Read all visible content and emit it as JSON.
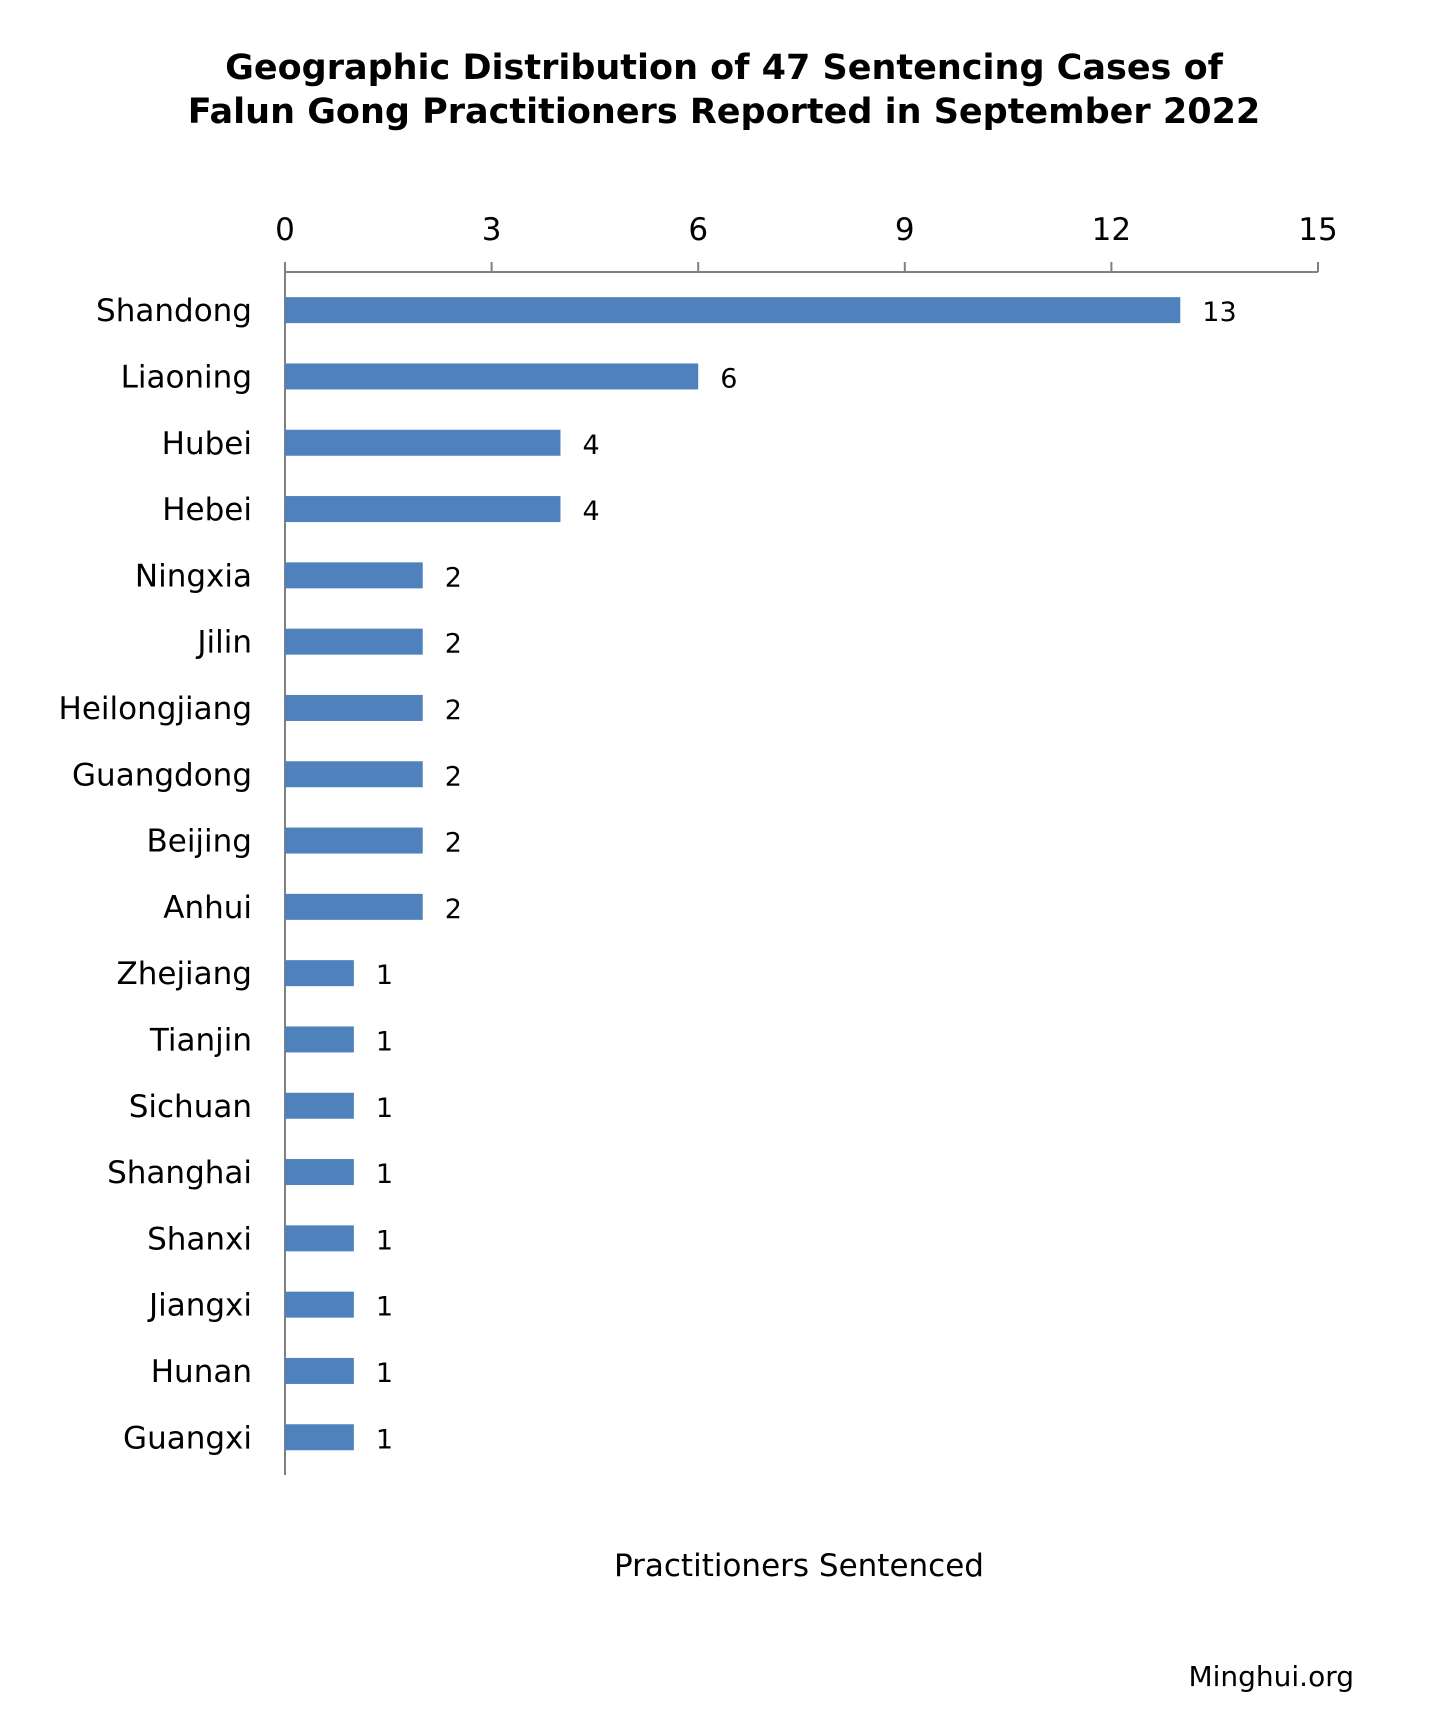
{
  "chart_data": {
    "type": "bar",
    "orientation": "horizontal",
    "title": [
      "Geographic Distribution of 47 Sentencing Cases of",
      "Falun Gong Practitioners Reported in September 2022"
    ],
    "xlabel": "Practitioners Sentenced",
    "ylabel": "",
    "categories": [
      "Shandong",
      "Liaoning",
      "Hubei",
      "Hebei",
      "Ningxia",
      "Jilin",
      "Heilongjiang",
      "Guangdong",
      "Beijing",
      "Anhui",
      "Zhejiang",
      "Tianjin",
      "Sichuan",
      "Shanghai",
      "Shanxi",
      "Jiangxi",
      "Hunan",
      "Guangxi"
    ],
    "values": [
      13,
      6,
      4,
      4,
      2,
      2,
      2,
      2,
      2,
      2,
      1,
      1,
      1,
      1,
      1,
      1,
      1,
      1
    ],
    "xlim": [
      0,
      15
    ],
    "xticks": [
      0,
      3,
      6,
      9,
      12,
      15
    ],
    "axis_position": "top",
    "grid": false,
    "legend": false,
    "data_labels": true,
    "bar_color": "#4F81BD",
    "axis_color": "#808080"
  },
  "source": "Minghui.org"
}
